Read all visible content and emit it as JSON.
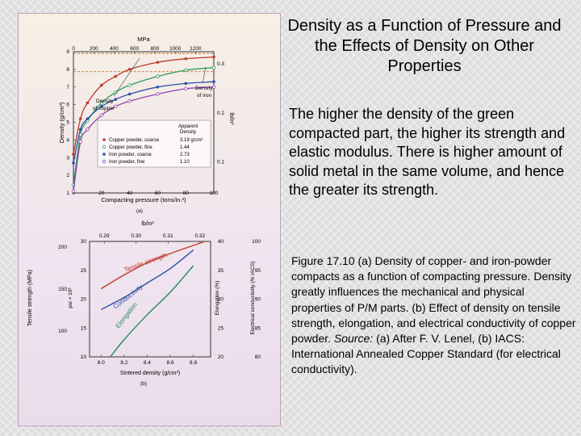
{
  "slide": {
    "title": "Density as a Function of Pressure and the Effects of Density on Other Properties",
    "lead": "The higher the density of the green compacted part, the higher its strength and elastic modulus. There is higher amount of solid metal in the same volume, and hence the greater its strength.",
    "caption_1": "Figure 17.10  (a)  Density of copper- and iron-powder compacts as a function of compacting pressure.  Density greatly influences the mechanical and physical properties of P/M parts.  (b)  Effect of density on tensile strength, elongation, and electrical conductivity of copper powder.  ",
    "caption_source": "Source:",
    "caption_2": "  (a)  After F. V. Lenel, (b) IACS: International Annealed Copper Standard (for electrical conductivity)."
  },
  "figure_a": {
    "label": "(a)",
    "top_axis_label": "MPa",
    "top_ticks": [
      "0",
      "200",
      "400",
      "600",
      "800",
      "1000",
      "1200"
    ],
    "x_label": "Compacting pressure (tons/in.²)",
    "x_ticks": [
      "0",
      "20",
      "40",
      "60",
      "80",
      "100"
    ],
    "y_label": "Density (g/cm³)",
    "y_ticks": [
      "1",
      "2",
      "3",
      "4",
      "5",
      "6",
      "7",
      "8",
      "9"
    ],
    "right_label": "lb/in³",
    "right_ticks": [
      "0.3",
      "0.2",
      "0.1"
    ],
    "annotations": [
      "Density of iron",
      "Density of copper"
    ],
    "legend_header": [
      "Apparent",
      "Density"
    ],
    "legend": [
      {
        "name": "Copper powder, coarse",
        "value": "3.19 g/cm³",
        "color": "#c0392b"
      },
      {
        "name": "Copper powder, fine",
        "value": "1.44",
        "color": "#2a9d5c"
      },
      {
        "name": "Iron powder, coarse",
        "value": "2.73",
        "color": "#2e4fa8"
      },
      {
        "name": "Iron powder, fine",
        "value": "1.10",
        "color": "#8e44ad"
      }
    ]
  },
  "figure_b": {
    "label": "(b)",
    "top_axis_label": "lb/in³",
    "top_ticks": [
      "0.29",
      "0.30",
      "0.31",
      "0.32"
    ],
    "x_label": "Sintered density (g/cm³)",
    "x_ticks": [
      "8.0",
      "8.2",
      "8.4",
      "8.6",
      "8.8"
    ],
    "y_left_label": "Tensile strength (MPa)",
    "y_left_ticks": [
      "200",
      "150",
      "100"
    ],
    "y_psi_label": "psi × 10³",
    "y_psi_ticks": [
      "30",
      "25",
      "20",
      "15",
      "10"
    ],
    "y_elong_label": "Elongation (%)",
    "y_elong_ticks": [
      "40",
      "35",
      "30",
      "25",
      "20"
    ],
    "y_cond_label": "Electrical conductivity (% IACS)",
    "y_cond_ticks": [
      "100",
      "95",
      "90",
      "85",
      "80"
    ],
    "curve_labels": [
      "Tensile strength",
      "Conductivity",
      "Elongation"
    ]
  },
  "chart_data": [
    {
      "type": "line",
      "x_axis": "Compacting pressure (tons/in.²)",
      "y_axis": "Density (g/cm³)",
      "xlim": [
        0,
        100
      ],
      "ylim": [
        1,
        9
      ],
      "reference_lines": [
        {
          "name": "Density of copper",
          "y": 8.9
        },
        {
          "name": "Density of iron",
          "y": 7.87
        }
      ],
      "series": [
        {
          "name": "Copper powder, coarse",
          "x": [
            0,
            5,
            10,
            20,
            30,
            40,
            60,
            80,
            100
          ],
          "y": [
            3.2,
            5.2,
            6.1,
            7.1,
            7.6,
            8.0,
            8.4,
            8.6,
            8.7
          ]
        },
        {
          "name": "Copper powder, fine",
          "x": [
            0,
            5,
            10,
            20,
            30,
            40,
            60,
            80,
            100
          ],
          "y": [
            1.45,
            4.3,
            5.1,
            6.1,
            6.7,
            7.1,
            7.6,
            7.95,
            8.1
          ]
        },
        {
          "name": "Iron powder, coarse",
          "x": [
            0,
            5,
            10,
            20,
            30,
            40,
            60,
            80,
            100
          ],
          "y": [
            2.7,
            4.6,
            5.2,
            5.9,
            6.3,
            6.6,
            7.0,
            7.2,
            7.3
          ]
        },
        {
          "name": "Iron powder, fine",
          "x": [
            0,
            5,
            10,
            20,
            30,
            40,
            60,
            80,
            100
          ],
          "y": [
            1.1,
            3.9,
            4.6,
            5.4,
            5.9,
            6.2,
            6.6,
            6.9,
            7.0
          ]
        }
      ]
    },
    {
      "type": "line",
      "x_axis": "Sintered density (g/cm³)",
      "xlim": [
        7.9,
        8.95
      ],
      "series": [
        {
          "name": "Tensile strength",
          "axis": "psi × 10³",
          "ylim": [
            10,
            30
          ],
          "x": [
            8.0,
            8.2,
            8.4,
            8.6,
            8.8,
            8.9
          ],
          "y": [
            21.8,
            24.2,
            26.3,
            27.9,
            29.3,
            30.0
          ]
        },
        {
          "name": "Conductivity",
          "axis": "Electrical conductivity (% IACS)",
          "ylim": [
            80,
            100
          ],
          "x": [
            8.0,
            8.2,
            8.4,
            8.6,
            8.8
          ],
          "y": [
            88.2,
            90.3,
            92.8,
            95.3,
            98.5
          ]
        },
        {
          "name": "Elongation",
          "axis": "Elongation (%)",
          "ylim": [
            20,
            40
          ],
          "x": [
            8.08,
            8.2,
            8.4,
            8.6,
            8.8
          ],
          "y": [
            20.0,
            23.0,
            27.3,
            31.2,
            35.8
          ]
        }
      ]
    }
  ]
}
